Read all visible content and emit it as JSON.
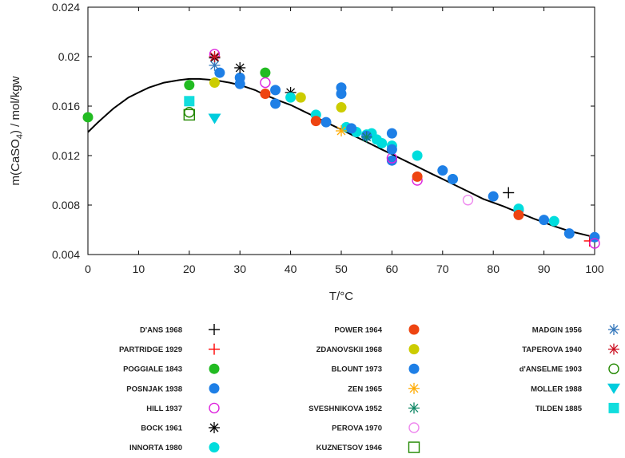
{
  "chart_data": {
    "type": "scatter",
    "title": "",
    "xlabel": "T/°C",
    "ylabel_parts": [
      "m(CaSO",
      "4",
      ") / mol/kgw"
    ],
    "xlim": [
      0,
      100
    ],
    "ylim": [
      0.004,
      0.024
    ],
    "xticks": [
      0,
      10,
      20,
      30,
      40,
      50,
      60,
      70,
      80,
      90,
      100
    ],
    "yticks": [
      0.004,
      0.008,
      0.012,
      0.016,
      0.02,
      0.024
    ],
    "ytick_labels": [
      "0.004",
      "0.008",
      "0.012",
      "0.016",
      "0.02",
      "0.024"
    ],
    "grid": false,
    "model_curve": {
      "name": "model",
      "color": "#000000",
      "x": [
        0,
        2,
        5,
        8,
        10,
        12,
        15,
        18,
        20,
        22,
        25,
        28,
        30,
        33,
        35,
        38,
        40,
        42,
        45,
        48,
        50,
        52,
        55,
        58,
        60,
        62,
        65,
        68,
        70,
        72,
        75,
        78,
        80,
        82,
        85,
        88,
        90,
        92,
        95,
        98,
        100
      ],
      "y": [
        0.0139,
        0.0147,
        0.0158,
        0.0167,
        0.0171,
        0.0175,
        0.0179,
        0.0181,
        0.0182,
        0.0182,
        0.0181,
        0.0179,
        0.0177,
        0.0173,
        0.0169,
        0.0164,
        0.0161,
        0.0157,
        0.0151,
        0.0145,
        0.0141,
        0.0137,
        0.0131,
        0.0125,
        0.0121,
        0.0117,
        0.0111,
        0.0105,
        0.0101,
        0.0097,
        0.0091,
        0.0085,
        0.0082,
        0.0079,
        0.0074,
        0.0069,
        0.0066,
        0.0063,
        0.0059,
        0.0056,
        0.0054
      ]
    },
    "series": [
      {
        "name": "D'ANS 1968",
        "marker": "plus",
        "color": "#000000",
        "x": [
          83
        ],
        "y": [
          0.009
        ]
      },
      {
        "name": "PARTRIDGE 1929",
        "marker": "plus",
        "color": "#ff0000",
        "x": [
          99
        ],
        "y": [
          0.0051
        ]
      },
      {
        "name": "POGGIALE 1843",
        "marker": "filled-circle",
        "color": "#22bb22",
        "x": [
          0,
          20,
          35
        ],
        "y": [
          0.0151,
          0.0177,
          0.0187
        ]
      },
      {
        "name": "POSNJAK 1938",
        "marker": "filled-circle",
        "color": "#1e7fe6",
        "x": [
          26,
          30,
          30,
          37,
          47,
          50,
          50,
          60,
          60,
          70,
          80,
          85,
          95,
          100
        ],
        "y": [
          0.0187,
          0.0183,
          0.0178,
          0.0162,
          0.0147,
          0.0175,
          0.017,
          0.0138,
          0.0116,
          0.0108,
          0.0087,
          0.0076,
          0.0057,
          0.0054
        ]
      },
      {
        "name": "HILL 1937",
        "marker": "open-circle",
        "color": "#dd22dd",
        "x": [
          25,
          35,
          60,
          65,
          100
        ],
        "y": [
          0.0202,
          0.0179,
          0.0118,
          0.01,
          0.0049
        ]
      },
      {
        "name": "BOCK 1961",
        "marker": "asterisk",
        "color": "#000000",
        "x": [
          25,
          30,
          40
        ],
        "y": [
          0.0199,
          0.0191,
          0.0171
        ]
      },
      {
        "name": "INNORTA 1980",
        "marker": "filled-circle",
        "color": "#00dddd",
        "x": [
          40,
          45,
          51,
          53,
          55,
          56,
          57,
          58,
          60,
          65,
          72,
          85,
          92
        ],
        "y": [
          0.0167,
          0.0153,
          0.0143,
          0.0139,
          0.0137,
          0.0138,
          0.0133,
          0.013,
          0.0128,
          0.012,
          0.0101,
          0.0077,
          0.0067
        ]
      },
      {
        "name": "POWER 1964",
        "marker": "filled-circle",
        "color": "#ee4411",
        "x": [
          35,
          45,
          65,
          85
        ],
        "y": [
          0.017,
          0.0148,
          0.0103,
          0.0072
        ]
      },
      {
        "name": "ZDANOVSKII 1968",
        "marker": "filled-circle",
        "color": "#cccc00",
        "x": [
          25,
          42,
          50
        ],
        "y": [
          0.0179,
          0.0167,
          0.0159
        ]
      },
      {
        "name": "BLOUNT 1973",
        "marker": "filled-circle",
        "color": "#1e7fe6",
        "x": [
          37,
          52,
          55,
          60,
          72,
          90
        ],
        "y": [
          0.0173,
          0.0142,
          0.0136,
          0.0125,
          0.0101,
          0.0068
        ]
      },
      {
        "name": "ZEN 1965",
        "marker": "asterisk",
        "color": "#ffaa00",
        "x": [
          50
        ],
        "y": [
          0.014
        ]
      },
      {
        "name": "SVESHNIKOVA 1952",
        "marker": "asterisk",
        "color": "#118866",
        "x": [
          55
        ],
        "y": [
          0.0135
        ]
      },
      {
        "name": "PEROVA 1970",
        "marker": "open-circle",
        "color": "#ee88ee",
        "x": [
          75
        ],
        "y": [
          0.0084
        ]
      },
      {
        "name": "KUZNETSOV 1946",
        "marker": "open-square",
        "color": "#228800",
        "x": [
          20
        ],
        "y": [
          0.0153
        ]
      },
      {
        "name": "MADGIN 1956",
        "marker": "asterisk",
        "color": "#3377bb",
        "x": [
          25
        ],
        "y": [
          0.0193
        ]
      },
      {
        "name": "TAPEROVA 1940",
        "marker": "asterisk",
        "color": "#cc1122",
        "x": [
          25
        ],
        "y": [
          0.02
        ]
      },
      {
        "name": "d'ANSELME 1903",
        "marker": "open-circle",
        "color": "#228800",
        "x": [
          20
        ],
        "y": [
          0.0155
        ]
      },
      {
        "name": "MOLLER 1988",
        "marker": "triangle-down",
        "color": "#00ccdd",
        "x": [
          25
        ],
        "y": [
          0.015
        ]
      },
      {
        "name": "TILDEN 1885",
        "marker": "filled-square",
        "color": "#11dddd",
        "x": [
          20
        ],
        "y": [
          0.0164
        ]
      }
    ],
    "legend_placement": "below plot, three columns"
  }
}
